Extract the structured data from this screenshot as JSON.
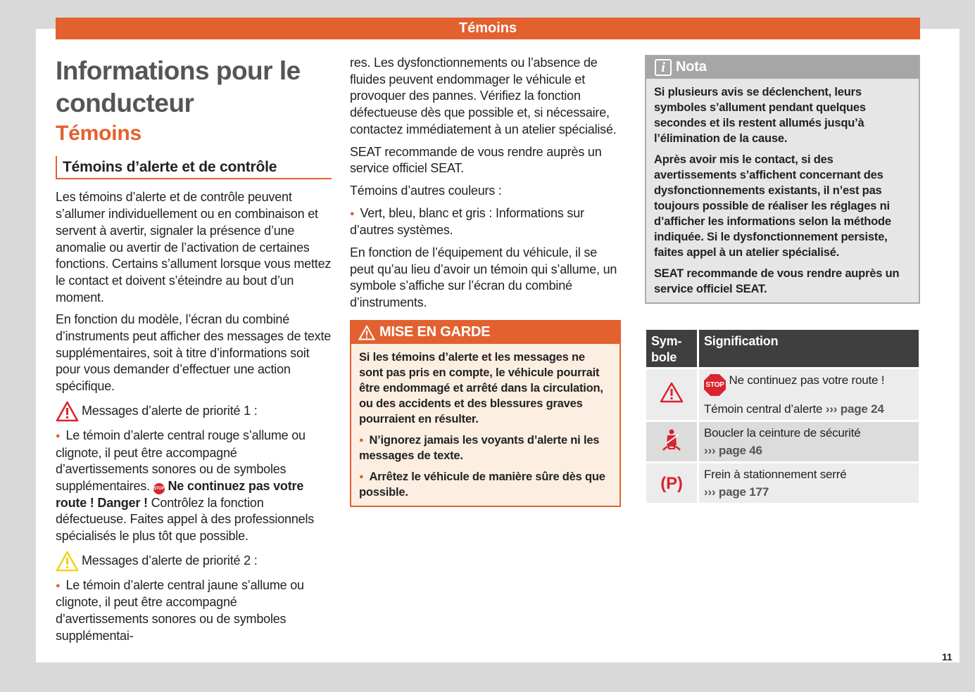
{
  "header": {
    "title": "Témoins"
  },
  "col1": {
    "h1": "Informations pour le conducteur",
    "h2": "Témoins",
    "h3": "Témoins d’alerte et de contrôle",
    "p1": "Les témoins d’alerte et de contrôle peuvent s’allumer individuellement ou en combinaison et servent à avertir, signaler la présence d’une anomalie ou avertir de l’activation de certaines fonctions. Certains s’allument lorsque vous mettez le contact et doivent s’éteindre au bout d’un moment.",
    "p2": "En fonction du modèle, l’écran du combiné d’instruments peut afficher des messages de texte supplémentaires, soit à titre d’informations soit pour vous demander d’effectuer une action spécifique.",
    "prio1": "Messages d’alerte de priorité 1 :",
    "b1a": "Le témoin d’alerte central rouge s’allume ou clignote, il peut être accompagné d’avertissements sonores ou de symboles supplémentaires.",
    "stop_label": "STOP",
    "b1b": "Ne continuez pas votre route ! Danger !",
    "b1c": "Contrôlez la fonction défectueuse. Faites appel à des professionnels spécialisés le plus tôt que possible.",
    "prio2": "Messages d’alerte de priorité 2 :",
    "b2": "Le témoin d’alerte central jaune s’allume ou clignote, il peut être accompagné d’avertissements sonores ou de symboles supplémentai-"
  },
  "col2": {
    "p1": "res. Les dysfonctionnements ou l’absence de fluides peuvent endommager le véhicule et provoquer des pannes. Vérifiez la fonction défectueuse dès que possible et, si nécessaire, contactez immédiatement à un atelier spécialisé.",
    "p2": "SEAT recommande de vous rendre auprès un service officiel SEAT.",
    "p3": "Témoins d’autres couleurs :",
    "b1": "Vert, bleu, blanc et gris : Informations sur d’autres systèmes.",
    "p4": "En fonction de l’équipement du véhicule, il se peut qu’au lieu d’avoir un témoin qui s’allume, un symbole s’affiche sur l’écran du combiné d’instruments.",
    "warning": {
      "title": "MISE EN GARDE",
      "p1": "Si les témoins d’alerte et les messages ne sont pas pris en compte, le véhicule pourrait être endommagé et arrêté dans la circulation, ou des accidents et des blessures graves pourraient en résulter.",
      "b1": "N’ignorez jamais les voyants d’alerte ni les messages de texte.",
      "b2": "Arrêtez le véhicule de manière sûre dès que possible."
    }
  },
  "col3": {
    "nota": {
      "title": "Nota",
      "p1": "Si plusieurs avis se déclenchent, leurs symboles s’allument pendant quelques secondes et ils restent allumés jusqu’à l’élimination de la cause.",
      "p2": "Après avoir mis le contact, si des avertissements s’affichent concernant des dysfonctionnements existants, il n’est pas toujours possible de réaliser les réglages ni d’afficher les informations selon la méthode indiquée. Si le dysfonctionnement persiste, faites appel à un atelier spécialisé.",
      "p3": "SEAT recommande de vous rendre auprès un service officiel SEAT."
    },
    "table": {
      "headers": [
        "Sym-bole",
        "Signification"
      ],
      "rows": [
        {
          "icon": "warning-triangle-icon",
          "stop": "STOP",
          "line1": "Ne continuez pas votre route !",
          "line2": "Témoin central d’alerte",
          "ref": "››› page 24"
        },
        {
          "icon": "seatbelt-icon",
          "line1": "Boucler la ceinture de sécurité",
          "ref": "››› page 46"
        },
        {
          "icon": "parking-brake-icon",
          "icon_text": "(P)",
          "line1": "Frein à stationnement serré",
          "ref": "››› page 177"
        }
      ]
    }
  },
  "page_number": "11",
  "colors": {
    "accent": "#e2612f",
    "red": "#d9232e",
    "yellow": "#f2d21b"
  }
}
